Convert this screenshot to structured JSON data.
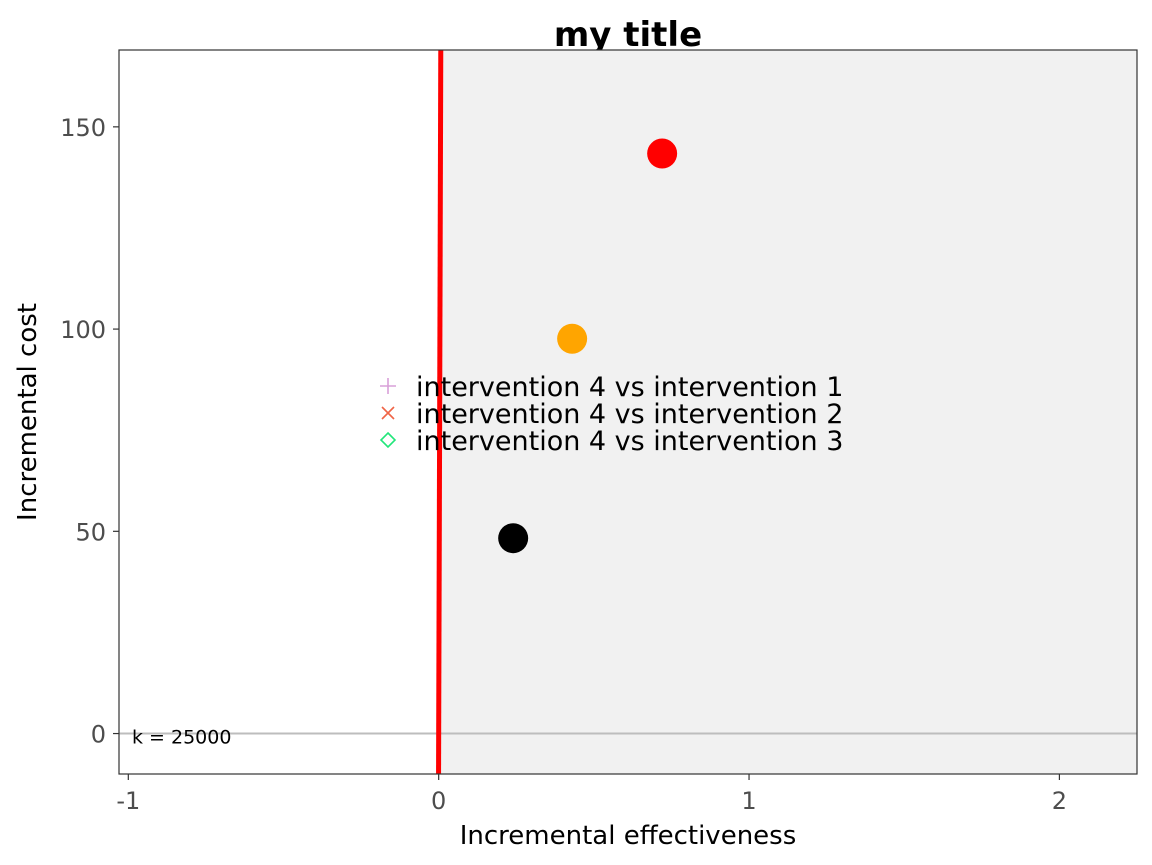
{
  "chart_data": {
    "type": "scatter",
    "title": "my title",
    "xlabel": "Incremental effectiveness",
    "ylabel": "Incremental cost",
    "xlim": [
      -1.03,
      2.25
    ],
    "ylim": [
      -10,
      169
    ],
    "x_ticks": [
      -1,
      0,
      1,
      2
    ],
    "x_tick_labels": [
      "-1",
      "0",
      "1",
      "2"
    ],
    "y_ticks": [
      0,
      50,
      100,
      150
    ],
    "y_tick_labels": [
      "0",
      "50",
      "100",
      "150"
    ],
    "grid": false,
    "background_colors": {
      "plot": "#ffffff",
      "ce_region": "#f1f1f1",
      "zero_line": "#bdbdbd",
      "wtp_line": "#ff0000"
    },
    "wtp_line": {
      "k": 25000,
      "label": "k = 25000",
      "color": "#ff0000"
    },
    "series": [
      {
        "name": "intervention 4 vs intervention 1",
        "color": "#000000",
        "points": [
          {
            "x": 0.24,
            "y": 48.3
          }
        ]
      },
      {
        "name": "intervention 4 vs intervention 2",
        "color": "#ff0000",
        "points": [
          {
            "x": 0.72,
            "y": 143.4
          }
        ]
      },
      {
        "name": "intervention 4 vs intervention 3",
        "color": "#ffa500",
        "points": [
          {
            "x": 0.43,
            "y": 97.6
          }
        ]
      }
    ],
    "legend": {
      "placement": "center",
      "entries": [
        {
          "label": "intervention 4 vs intervention 1",
          "symbol": "plus",
          "color": "#d8a0d8"
        },
        {
          "label": "intervention 4 vs intervention 2",
          "symbol": "cross",
          "color": "#f06446"
        },
        {
          "label": "intervention 4 vs intervention 3",
          "symbol": "diamond",
          "color": "#22e67a"
        }
      ]
    }
  }
}
